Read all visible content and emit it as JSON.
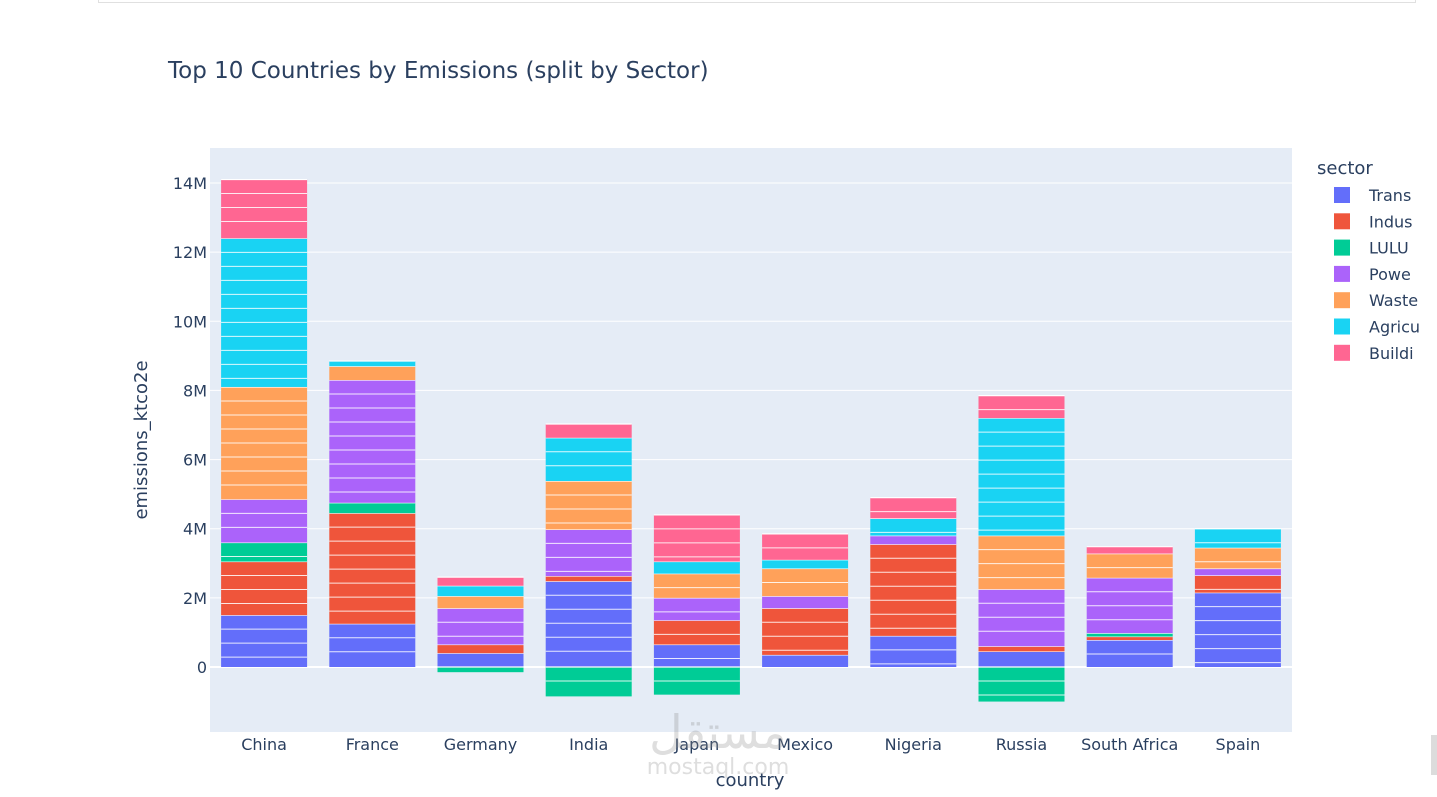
{
  "chart_data": {
    "type": "bar",
    "barmode": "relative",
    "title": "Top 10 Countries by Emissions (split by Sector)",
    "xlabel": "country",
    "ylabel": "emissions_ktco2e",
    "ylim": [
      -1800000,
      15000000
    ],
    "y_ticks": [
      0,
      2000000,
      4000000,
      6000000,
      8000000,
      10000000,
      12000000,
      14000000
    ],
    "y_tick_labels": [
      "0",
      "2M",
      "4M",
      "6M",
      "8M",
      "10M",
      "12M",
      "14M"
    ],
    "grid": true,
    "legend_title": "sector",
    "legend_position": "right",
    "categories": [
      "China",
      "France",
      "Germany",
      "India",
      "Japan",
      "Mexico",
      "Nigeria",
      "Russia",
      "South Africa",
      "Spain"
    ],
    "series": [
      {
        "name": "Trans",
        "color": "#636efa",
        "values": [
          1500000,
          1250000,
          400000,
          2480000,
          650000,
          350000,
          900000,
          450000,
          780000,
          2150000
        ]
      },
      {
        "name": "Indus",
        "color": "#ef553b",
        "values": [
          1550000,
          3200000,
          250000,
          150000,
          700000,
          1350000,
          2650000,
          150000,
          100000,
          500000
        ]
      },
      {
        "name": "LULU",
        "color": "#00cc96",
        "values": [
          550000,
          300000,
          -150000,
          -850000,
          -800000,
          0,
          0,
          -1000000,
          100000,
          0
        ]
      },
      {
        "name": "Powe",
        "color": "#ab63fa",
        "values": [
          1250000,
          3550000,
          1050000,
          1350000,
          650000,
          350000,
          250000,
          1650000,
          1600000,
          200000
        ]
      },
      {
        "name": "Waste",
        "color": "#ffa15a",
        "values": [
          3250000,
          400000,
          350000,
          1400000,
          700000,
          800000,
          0,
          1550000,
          700000,
          600000
        ]
      },
      {
        "name": "Agricu",
        "color": "#19d3f3",
        "values": [
          4300000,
          150000,
          300000,
          1250000,
          350000,
          250000,
          500000,
          3400000,
          0,
          550000
        ]
      },
      {
        "name": "Buildi",
        "color": "#ff6692",
        "values": [
          1700000,
          0,
          250000,
          400000,
          1350000,
          750000,
          600000,
          650000,
          200000,
          0
        ]
      }
    ]
  },
  "watermark": {
    "arabic": "مستقل",
    "latin": "mostaql.com"
  }
}
